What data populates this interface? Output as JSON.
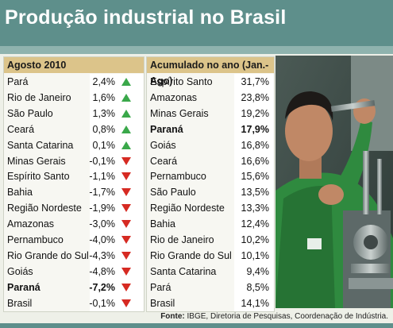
{
  "title": "Produção industrial no Brasil",
  "source_label": "Fonte:",
  "source_text": "IBGE, Diretoria de Pesquisas, Coordenação de Indústria.",
  "chart_data": [
    {
      "type": "table",
      "title": "Agosto 2010",
      "rows": [
        {
          "region": "Pará",
          "value": "2,4%",
          "dir": "up"
        },
        {
          "region": "Rio de Janeiro",
          "value": "1,6%",
          "dir": "up"
        },
        {
          "region": "São Paulo",
          "value": "1,3%",
          "dir": "up"
        },
        {
          "region": "Ceará",
          "value": "0,8%",
          "dir": "up"
        },
        {
          "region": "Santa Catarina",
          "value": "0,1%",
          "dir": "up"
        },
        {
          "region": "Minas Gerais",
          "value": "-0,1%",
          "dir": "down"
        },
        {
          "region": "Espírito Santo",
          "value": "-1,1%",
          "dir": "down"
        },
        {
          "region": "Bahia",
          "value": "-1,7%",
          "dir": "down"
        },
        {
          "region": "Região Nordeste",
          "value": "-1,9%",
          "dir": "down"
        },
        {
          "region": "Amazonas",
          "value": "-3,0%",
          "dir": "down"
        },
        {
          "region": "Pernambuco",
          "value": "-4,0%",
          "dir": "down"
        },
        {
          "region": "Rio Grande do Sul",
          "value": "-4,3%",
          "dir": "down"
        },
        {
          "region": "Goiás",
          "value": "-4,8%",
          "dir": "down"
        },
        {
          "region": "Paraná",
          "value": "-7,2%",
          "dir": "down",
          "bold": true
        },
        {
          "region": "Brasil",
          "value": "-0,1%",
          "dir": "down"
        }
      ]
    },
    {
      "type": "table",
      "title": "Acumulado no ano (Jan.-Ago)",
      "rows": [
        {
          "region": "Espírito Santo",
          "value": "31,7%"
        },
        {
          "region": "Amazonas",
          "value": "23,8%"
        },
        {
          "region": "Minas Gerais",
          "value": "19,2%"
        },
        {
          "region": "Paraná",
          "value": "17,9%",
          "bold": true
        },
        {
          "region": "Goiás",
          "value": "16,8%"
        },
        {
          "region": "Ceará",
          "value": "16,6%"
        },
        {
          "region": "Pernambuco",
          "value": "15,6%"
        },
        {
          "region": "São Paulo",
          "value": "13,5%"
        },
        {
          "region": "Região Nordeste",
          "value": "13,3%"
        },
        {
          "region": "Bahia",
          "value": "12,4%"
        },
        {
          "region": "Rio de Janeiro",
          "value": "10,2%"
        },
        {
          "region": "Rio Grande do Sul",
          "value": "10,1%"
        },
        {
          "region": "Santa Catarina",
          "value": "9,4%"
        },
        {
          "region": "Pará",
          "value": "8,5%"
        },
        {
          "region": "Brasil",
          "value": "14,1%"
        }
      ]
    }
  ],
  "colors": {
    "header": "#5e8f8b",
    "table_head": "#dcc48a",
    "up": "#3aa84a",
    "down": "#d62a22"
  }
}
